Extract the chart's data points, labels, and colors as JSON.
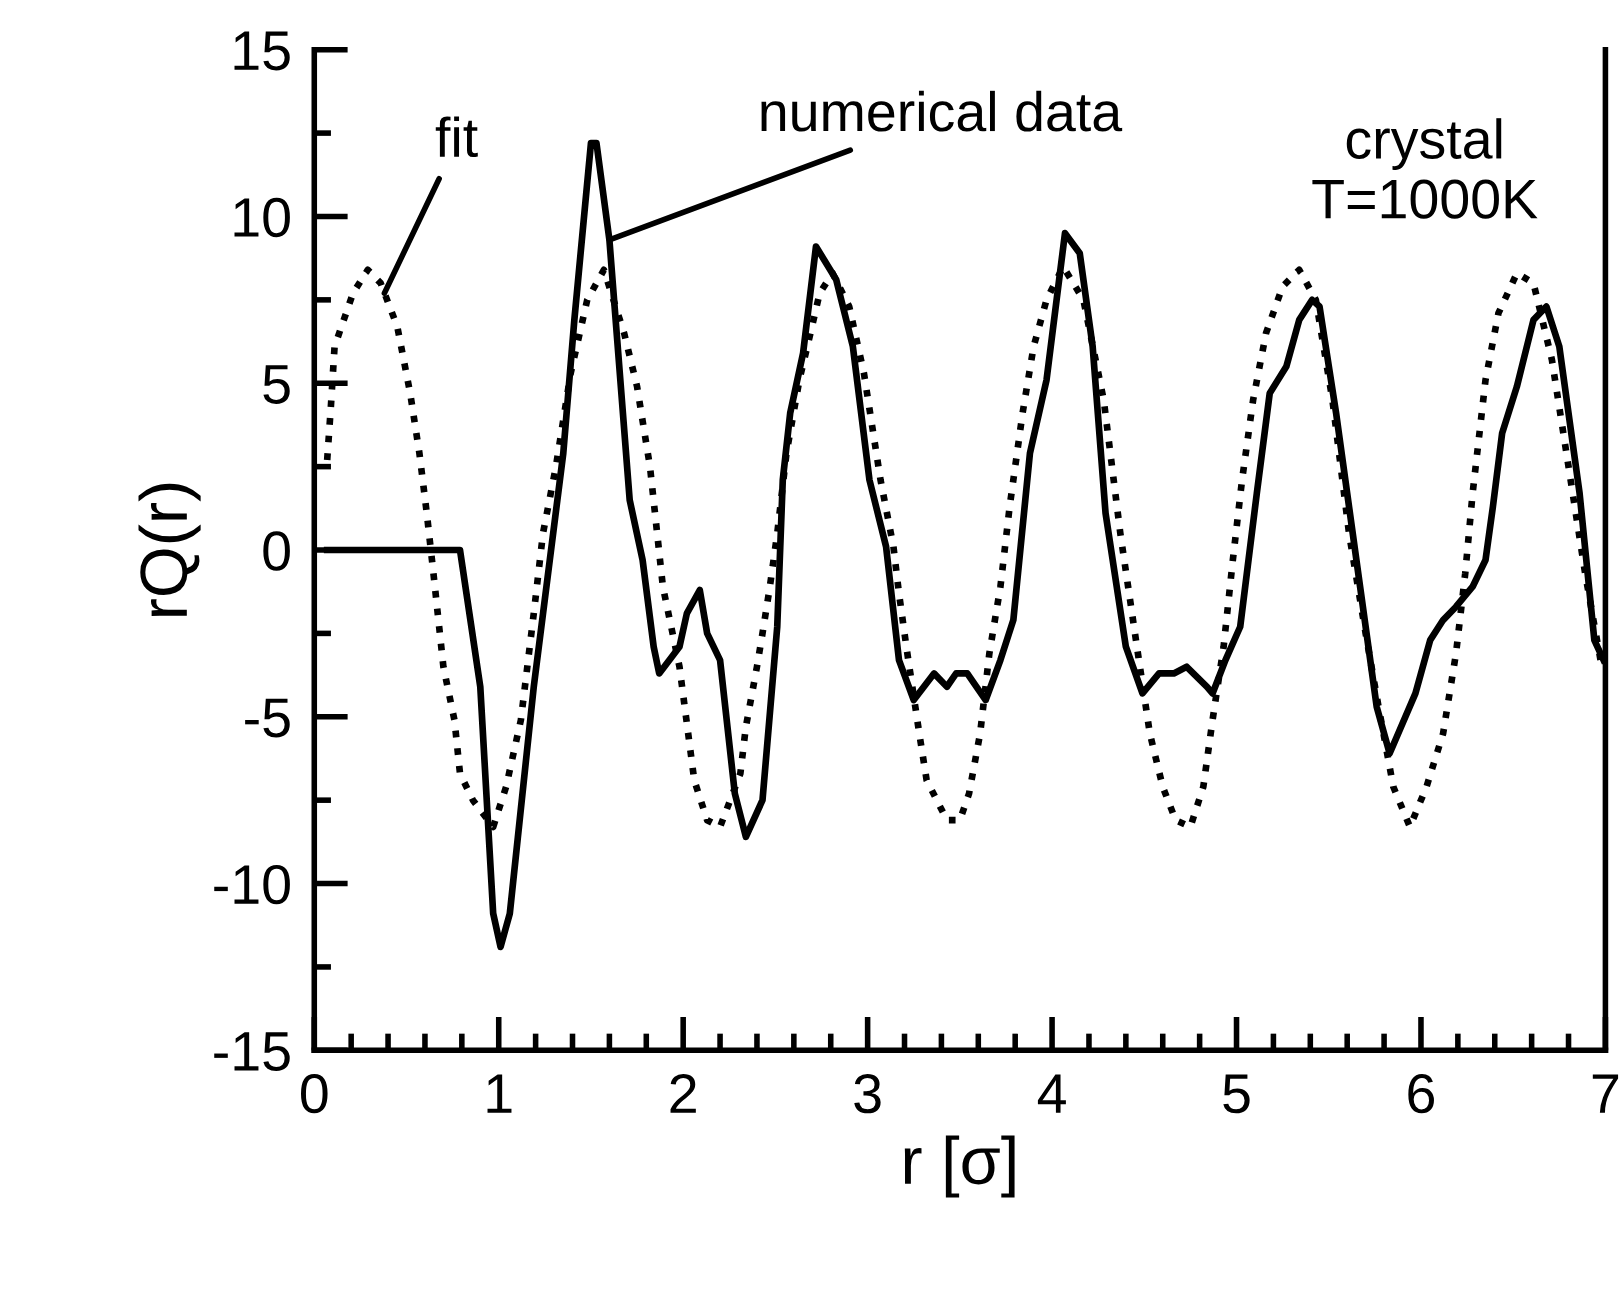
{
  "chart_data": {
    "type": "line",
    "xlabel": "r [σ]",
    "ylabel": "rQ(r)",
    "xlim": [
      0,
      7
    ],
    "ylim": [
      -15,
      15
    ],
    "xticks": [
      0,
      {
        "value": 0.2,
        "label": null
      },
      {
        "value": 0.4,
        "label": null
      },
      {
        "value": 0.6,
        "label": null
      },
      {
        "value": 0.8,
        "label": null
      },
      1,
      {
        "value": 1.2,
        "label": null
      },
      {
        "value": 1.4,
        "label": null
      },
      {
        "value": 1.6,
        "label": null
      },
      {
        "value": 1.8,
        "label": null
      },
      2,
      {
        "value": 2.2,
        "label": null
      },
      {
        "value": 2.4,
        "label": null
      },
      {
        "value": 2.6,
        "label": null
      },
      {
        "value": 2.8,
        "label": null
      },
      3,
      {
        "value": 3.2,
        "label": null
      },
      {
        "value": 3.4,
        "label": null
      },
      {
        "value": 3.6,
        "label": null
      },
      {
        "value": 3.8,
        "label": null
      },
      4,
      {
        "value": 4.2,
        "label": null
      },
      {
        "value": 4.4,
        "label": null
      },
      {
        "value": 4.6,
        "label": null
      },
      {
        "value": 4.8,
        "label": null
      },
      5,
      {
        "value": 5.2,
        "label": null
      },
      {
        "value": 5.4,
        "label": null
      },
      {
        "value": 5.6,
        "label": null
      },
      {
        "value": 5.8,
        "label": null
      },
      6,
      {
        "value": 6.2,
        "label": null
      },
      {
        "value": 6.4,
        "label": null
      },
      {
        "value": 6.6,
        "label": null
      },
      {
        "value": 6.8,
        "label": null
      },
      7
    ],
    "yticks": [
      -15,
      {
        "value": -12.5,
        "label": null
      },
      -10,
      {
        "value": -7.5,
        "label": null
      },
      -5,
      {
        "value": -2.5,
        "label": null
      },
      0,
      {
        "value": 2.5,
        "label": null
      },
      5,
      {
        "value": 7.5,
        "label": null
      },
      10,
      {
        "value": 12.5,
        "label": null
      },
      15
    ],
    "series": [
      {
        "color": "#000000",
        "line_style": "dotted",
        "x": [
          0.07,
          0.09,
          0.11,
          0.21,
          0.29,
          0.36,
          0.45,
          0.52,
          0.57,
          0.61,
          0.65,
          0.7,
          0.76,
          0.79,
          0.86,
          0.97,
          1.04,
          1.12,
          1.19,
          1.24,
          1.31,
          1.39,
          1.48,
          1.57,
          1.68,
          1.75,
          1.82,
          1.89,
          1.98,
          2.06,
          2.13,
          2.2,
          2.31,
          2.34,
          2.4,
          2.43,
          2.47,
          2.51,
          2.56,
          2.63,
          2.69,
          2.74,
          2.81,
          2.9,
          2.98,
          3.07,
          3.14,
          3.17,
          3.21,
          3.28,
          3.32,
          3.43,
          3.5,
          3.55,
          3.61,
          3.66,
          3.72,
          3.77,
          3.84,
          3.9,
          3.97,
          4.06,
          4.17,
          4.28,
          4.37,
          4.46,
          4.53,
          4.6,
          4.67,
          4.75,
          4.82,
          4.87,
          4.93,
          4.98,
          5.03,
          5.09,
          5.16,
          5.25,
          5.34,
          5.43,
          5.52,
          5.61,
          5.7,
          5.77,
          5.85,
          5.94,
          6.03,
          6.12,
          6.19,
          6.24,
          6.28,
          6.35,
          6.42,
          6.52,
          6.61,
          6.71,
          6.8,
          6.89,
          6.98
        ],
        "values": [
          2.7,
          4.3,
          6.1,
          7.7,
          8.4,
          8.0,
          6.7,
          4.7,
          2.9,
          1.1,
          -0.9,
          -3.5,
          -5.1,
          -6.7,
          -7.5,
          -8.3,
          -7.1,
          -5.1,
          -1.9,
          0.5,
          2.5,
          5.3,
          7.5,
          8.4,
          6.5,
          4.9,
          2.5,
          -1.1,
          -3.5,
          -6.9,
          -8.1,
          -8.3,
          -6.7,
          -5.3,
          -3.5,
          -2.5,
          -1.1,
          0.5,
          2.9,
          5.1,
          6.5,
          7.7,
          8.3,
          7.3,
          5.3,
          2.1,
          0.1,
          -1.3,
          -2.9,
          -5.5,
          -6.9,
          -8.1,
          -8.1,
          -7.3,
          -5.5,
          -3.1,
          -1.1,
          1.3,
          4.1,
          6.1,
          7.5,
          8.5,
          7.5,
          4.5,
          0.5,
          -2.9,
          -5.5,
          -7.1,
          -8.1,
          -8.3,
          -7.1,
          -5.1,
          -2.9,
          -0.3,
          2.1,
          4.5,
          6.5,
          7.9,
          8.4,
          7.5,
          4.5,
          0.5,
          -2.5,
          -4.7,
          -7.1,
          -8.3,
          -7.1,
          -5.5,
          -3.1,
          -0.7,
          1.7,
          5.1,
          7.1,
          8.3,
          8.0,
          5.7,
          2.5,
          -0.7,
          -3.5
        ]
      },
      {
        "color": "#000000",
        "line_style": "solid",
        "x": [
          0.07,
          0.79,
          0.9,
          0.97,
          1.01,
          1.06,
          1.19,
          1.35,
          1.41,
          1.5,
          1.53,
          1.6,
          1.71,
          1.78,
          1.84,
          1.87,
          1.98,
          2.02,
          2.09,
          2.13,
          2.2,
          2.28,
          2.34,
          2.43,
          2.51,
          2.54,
          2.58,
          2.65,
          2.72,
          2.83,
          2.92,
          3.01,
          3.1,
          3.17,
          3.25,
          3.36,
          3.43,
          3.48,
          3.54,
          3.64,
          3.72,
          3.79,
          3.88,
          3.97,
          4.07,
          4.15,
          4.22,
          4.29,
          4.4,
          4.49,
          4.58,
          4.66,
          4.73,
          4.84,
          4.87,
          4.94,
          5.02,
          5.11,
          5.18,
          5.27,
          5.34,
          5.41,
          5.45,
          5.54,
          5.67,
          5.76,
          5.83,
          5.97,
          6.05,
          6.12,
          6.19,
          6.28,
          6.35,
          6.39,
          6.44,
          6.52,
          6.61,
          6.68,
          6.75,
          6.86,
          6.94,
          6.99
        ],
        "values": [
          0,
          0,
          -4.1,
          -10.9,
          -11.9,
          -10.9,
          -4.1,
          2.9,
          6.9,
          12.2,
          12.2,
          9.3,
          1.5,
          -0.3,
          -2.9,
          -3.7,
          -2.9,
          -1.9,
          -1.2,
          -2.5,
          -3.3,
          -7.3,
          -8.6,
          -7.5,
          -2.3,
          2.1,
          4.1,
          5.9,
          9.1,
          8.1,
          6.1,
          2.1,
          0.1,
          -3.3,
          -4.5,
          -3.7,
          -4.1,
          -3.7,
          -3.7,
          -4.5,
          -3.3,
          -2.1,
          2.9,
          5.1,
          9.5,
          8.9,
          6.1,
          1.1,
          -2.9,
          -4.3,
          -3.7,
          -3.7,
          -3.5,
          -4.1,
          -4.3,
          -3.3,
          -2.3,
          1.7,
          4.7,
          5.5,
          6.9,
          7.5,
          7.3,
          4.1,
          -1.1,
          -4.7,
          -6.1,
          -4.3,
          -2.7,
          -2.1,
          -1.7,
          -1.1,
          -0.3,
          1.3,
          3.5,
          4.9,
          6.9,
          7.3,
          6.1,
          1.7,
          -2.7,
          -3.3
        ]
      }
    ],
    "annotations": [
      {
        "text": "fit",
        "x": 0.38,
        "y": 7.7
      },
      {
        "text": "numerical data",
        "x": 1.6,
        "y": 9.3
      },
      "crystal\nT=1000K"
    ]
  }
}
